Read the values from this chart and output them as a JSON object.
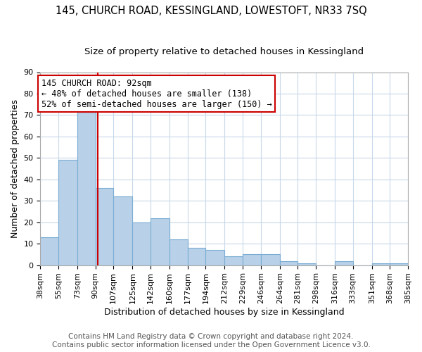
{
  "title": "145, CHURCH ROAD, KESSINGLAND, LOWESTOFT, NR33 7SQ",
  "subtitle": "Size of property relative to detached houses in Kessingland",
  "xlabel": "Distribution of detached houses by size in Kessingland",
  "ylabel": "Number of detached properties",
  "footer_lines": [
    "Contains HM Land Registry data © Crown copyright and database right 2024.",
    "Contains public sector information licensed under the Open Government Licence v3.0."
  ],
  "annotation_title": "145 CHURCH ROAD: 92sqm",
  "annotation_line1": "← 48% of detached houses are smaller (138)",
  "annotation_line2": "52% of semi-detached houses are larger (150) →",
  "bin_edges": [
    38,
    55,
    73,
    90,
    107,
    125,
    142,
    160,
    177,
    194,
    212,
    229,
    246,
    264,
    281,
    298,
    316,
    333,
    351,
    368,
    385
  ],
  "bin_labels": [
    "38sqm",
    "55sqm",
    "73sqm",
    "90sqm",
    "107sqm",
    "125sqm",
    "142sqm",
    "160sqm",
    "177sqm",
    "194sqm",
    "212sqm",
    "229sqm",
    "246sqm",
    "264sqm",
    "281sqm",
    "298sqm",
    "316sqm",
    "333sqm",
    "351sqm",
    "368sqm",
    "385sqm"
  ],
  "counts": [
    13,
    49,
    73,
    36,
    32,
    20,
    22,
    12,
    8,
    7,
    4,
    5,
    5,
    2,
    1,
    0,
    2,
    0,
    1,
    1
  ],
  "bar_color": "#b8d0e8",
  "bar_edge_color": "#7aadd4",
  "property_sqm": 92,
  "annotation_box_edge_color": "#cc0000",
  "annotation_box_face_color": "#ffffff",
  "vline_color": "#cc0000",
  "ylim": [
    0,
    90
  ],
  "yticks": [
    0,
    10,
    20,
    30,
    40,
    50,
    60,
    70,
    80,
    90
  ],
  "grid_color": "#c8d8e8",
  "plot_bg_color": "#ffffff",
  "fig_bg_color": "#ffffff",
  "title_fontsize": 10.5,
  "subtitle_fontsize": 9.5,
  "axis_label_fontsize": 9,
  "tick_fontsize": 8,
  "annotation_fontsize": 8.5,
  "footer_fontsize": 7.5
}
